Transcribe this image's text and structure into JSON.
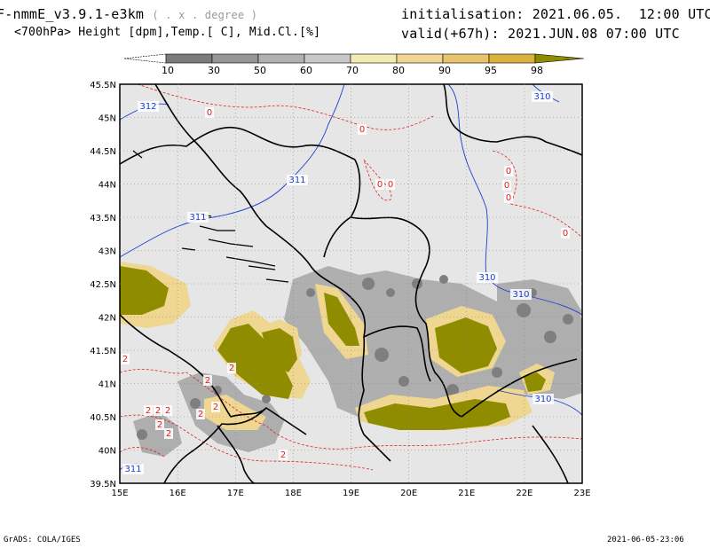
{
  "header": {
    "model": "F-nmmE_v3.9.1-e3km",
    "grid_note": "( . x . degree )",
    "fields": "<700hPa> Height [dpm],Temp.[ C], Mid.Cl.[%]",
    "init": "initialisation: 2021.06.05.  12:00 UTC",
    "valid": "valid(+67h): 2021.JUN.08 07:00 UTC"
  },
  "footer": {
    "left": "GrADS: COLA/IGES",
    "right": "2021-06-05-23:06"
  },
  "colorbar": {
    "labels": [
      "10",
      "30",
      "50",
      "60",
      "70",
      "80",
      "90",
      "95",
      "98"
    ],
    "colors": [
      "#7a7a7a",
      "#969696",
      "#b0b0b0",
      "#c8c8c8",
      "#f3ebaf",
      "#efd792",
      "#e8c46b",
      "#d9b23c",
      "#8f8c00"
    ]
  },
  "map": {
    "lon_labels": [
      "15E",
      "16E",
      "17E",
      "18E",
      "19E",
      "20E",
      "21E",
      "22E",
      "23E"
    ],
    "lat_labels": [
      "45.5N",
      "45N",
      "44.5N",
      "44N",
      "43.5N",
      "43N",
      "42.5N",
      "42N",
      "41.5N",
      "41N",
      "40.5N",
      "40N",
      "39.5N"
    ],
    "height_labels": [
      "312",
      "311",
      "311",
      "310",
      "310",
      "310",
      "310",
      "311"
    ],
    "temp_labels": [
      "0",
      "0",
      "0",
      "0",
      "0",
      "0",
      "0",
      "0",
      "2",
      "2",
      "2",
      "2",
      "2",
      "2",
      "2",
      "2",
      "2",
      "2",
      "2"
    ],
    "colors": {
      "background": "#e6e6e6",
      "height_contour": "#1a3fd1",
      "temp_contour": "#e02020",
      "border": "#000000"
    }
  }
}
